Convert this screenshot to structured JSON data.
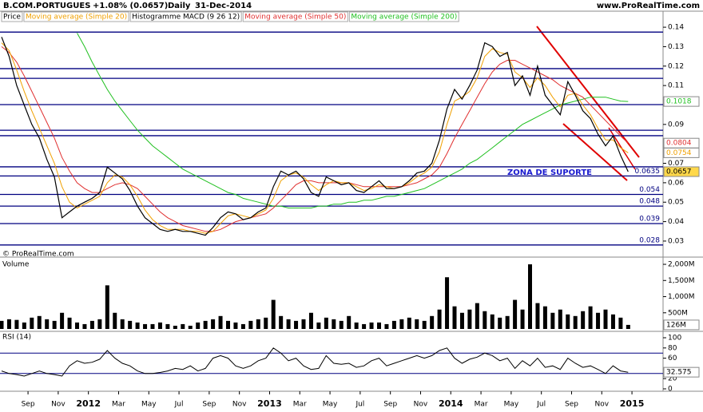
{
  "header": {
    "symbol": "B.COM.PORTUGUES",
    "change": "+1.08% (0.0657)",
    "period": "Daily",
    "date": "31-Dec-2014",
    "site": "www.ProRealTime.com",
    "copyright": "© ProRealTime.com"
  },
  "chart_data": [
    {
      "type": "line",
      "title": "Price",
      "indicator": "Histogramme MACD (9 26 12)",
      "annotation": "ZONA DE SUPORTE",
      "ylim": [
        0.0234,
        0.1425
      ],
      "yticks": [
        0.14,
        0.13,
        0.12,
        0.11,
        0.09,
        0.07,
        0.06,
        0.05,
        0.04,
        0.03
      ],
      "levels": [
        0.1375,
        0.1187,
        0.1137,
        0.1002,
        0.087,
        0.0842,
        0.0682
      ],
      "labeled_levels": [
        0.0635,
        0.054,
        0.048,
        0.039,
        0.028
      ],
      "level_color": "#000080",
      "x_labels": [
        "Sep",
        "Nov",
        "2012",
        "Mar",
        "May",
        "Jul",
        "Sep",
        "Nov",
        "2013",
        "Mar",
        "May",
        "Jul",
        "Sep",
        "Nov",
        "2014",
        "Mar",
        "May",
        "Jul",
        "Sep",
        "Nov",
        "2015"
      ],
      "series": [
        {
          "name": "Price",
          "color": "#000000",
          "last_value": 0.0657,
          "values": [
            0.135,
            0.125,
            0.11,
            0.1,
            0.09,
            0.083,
            0.072,
            0.063,
            0.042,
            0.045,
            0.048,
            0.05,
            0.052,
            0.055,
            0.068,
            0.065,
            0.062,
            0.056,
            0.048,
            0.042,
            0.039,
            0.036,
            0.035,
            0.036,
            0.035,
            0.035,
            0.034,
            0.033,
            0.037,
            0.042,
            0.045,
            0.044,
            0.041,
            0.042,
            0.045,
            0.047,
            0.058,
            0.066,
            0.064,
            0.066,
            0.062,
            0.055,
            0.053,
            0.063,
            0.061,
            0.059,
            0.06,
            0.056,
            0.055,
            0.058,
            0.061,
            0.057,
            0.057,
            0.058,
            0.061,
            0.065,
            0.066,
            0.07,
            0.082,
            0.098,
            0.108,
            0.103,
            0.11,
            0.118,
            0.132,
            0.13,
            0.125,
            0.127,
            0.11,
            0.115,
            0.105,
            0.12,
            0.105,
            0.1,
            0.095,
            0.112,
            0.105,
            0.097,
            0.093,
            0.085,
            0.079,
            0.084,
            0.074,
            0.0657
          ]
        },
        {
          "name": "Moving average (Simple 20)",
          "color": "#f0a000",
          "last_value": 0.0754,
          "values": [
            0.132,
            0.128,
            0.118,
            0.107,
            0.097,
            0.088,
            0.079,
            0.07,
            0.058,
            0.05,
            0.047,
            0.049,
            0.051,
            0.053,
            0.06,
            0.064,
            0.063,
            0.059,
            0.053,
            0.046,
            0.041,
            0.038,
            0.036,
            0.036,
            0.036,
            0.035,
            0.035,
            0.034,
            0.035,
            0.039,
            0.043,
            0.044,
            0.043,
            0.042,
            0.044,
            0.046,
            0.052,
            0.061,
            0.064,
            0.065,
            0.063,
            0.059,
            0.056,
            0.059,
            0.061,
            0.06,
            0.06,
            0.058,
            0.056,
            0.057,
            0.059,
            0.058,
            0.057,
            0.058,
            0.06,
            0.063,
            0.065,
            0.068,
            0.076,
            0.09,
            0.102,
            0.104,
            0.107,
            0.114,
            0.125,
            0.129,
            0.127,
            0.126,
            0.117,
            0.114,
            0.109,
            0.114,
            0.11,
            0.104,
            0.099,
            0.105,
            0.106,
            0.1,
            0.095,
            0.088,
            0.082,
            0.082,
            0.078,
            0.0754
          ]
        },
        {
          "name": "Moving average (Simple 50)",
          "color": "#e03030",
          "last_value": 0.0804,
          "values": [
            0.13,
            0.127,
            0.122,
            0.115,
            0.107,
            0.099,
            0.091,
            0.083,
            0.073,
            0.066,
            0.06,
            0.057,
            0.055,
            0.055,
            0.057,
            0.059,
            0.06,
            0.059,
            0.057,
            0.053,
            0.049,
            0.045,
            0.042,
            0.04,
            0.038,
            0.037,
            0.036,
            0.035,
            0.035,
            0.036,
            0.038,
            0.04,
            0.041,
            0.042,
            0.043,
            0.044,
            0.047,
            0.051,
            0.055,
            0.059,
            0.061,
            0.061,
            0.06,
            0.06,
            0.06,
            0.06,
            0.06,
            0.059,
            0.058,
            0.058,
            0.058,
            0.058,
            0.058,
            0.058,
            0.059,
            0.06,
            0.062,
            0.064,
            0.068,
            0.075,
            0.083,
            0.09,
            0.097,
            0.104,
            0.111,
            0.117,
            0.121,
            0.123,
            0.123,
            0.121,
            0.119,
            0.117,
            0.115,
            0.113,
            0.11,
            0.108,
            0.106,
            0.104,
            0.1,
            0.096,
            0.092,
            0.088,
            0.084,
            0.0804
          ]
        },
        {
          "name": "Moving average (Simple 200)",
          "color": "#20c020",
          "last_value": 0.1018,
          "values": [
            null,
            null,
            null,
            null,
            null,
            null,
            null,
            null,
            null,
            null,
            0.137,
            0.13,
            0.122,
            0.115,
            0.108,
            0.102,
            0.097,
            0.092,
            0.087,
            0.083,
            0.079,
            0.076,
            0.073,
            0.07,
            0.067,
            0.065,
            0.063,
            0.061,
            0.059,
            0.057,
            0.055,
            0.054,
            0.052,
            0.051,
            0.05,
            0.049,
            0.048,
            0.048,
            0.047,
            0.047,
            0.047,
            0.047,
            0.048,
            0.048,
            0.049,
            0.049,
            0.05,
            0.05,
            0.051,
            0.051,
            0.052,
            0.053,
            0.053,
            0.054,
            0.055,
            0.056,
            0.057,
            0.059,
            0.061,
            0.063,
            0.065,
            0.067,
            0.07,
            0.072,
            0.075,
            0.078,
            0.081,
            0.084,
            0.087,
            0.09,
            0.092,
            0.094,
            0.096,
            0.098,
            0.1,
            0.101,
            0.102,
            0.103,
            0.104,
            0.104,
            0.104,
            0.103,
            0.102,
            0.1018
          ]
        }
      ]
    },
    {
      "type": "bar",
      "title": "Volume",
      "color": "#000000",
      "ylim": [
        0,
        2100
      ],
      "yticks": [
        {
          "value": 2000,
          "label": "2,000M"
        },
        {
          "value": 1500,
          "label": "1,500M"
        },
        {
          "value": 1000,
          "label": "1,000M"
        },
        {
          "value": 500,
          "label": "500M"
        }
      ],
      "last_value": {
        "value": 126,
        "label": "126M"
      },
      "values": [
        250,
        300,
        280,
        200,
        350,
        400,
        300,
        250,
        500,
        350,
        200,
        150,
        250,
        300,
        1350,
        500,
        300,
        250,
        200,
        150,
        150,
        200,
        150,
        100,
        150,
        100,
        200,
        250,
        300,
        400,
        250,
        200,
        150,
        250,
        300,
        350,
        900,
        400,
        300,
        250,
        300,
        500,
        200,
        350,
        300,
        250,
        400,
        200,
        150,
        200,
        200,
        150,
        250,
        300,
        350,
        300,
        250,
        400,
        600,
        1600,
        700,
        500,
        600,
        800,
        550,
        450,
        350,
        400,
        900,
        600,
        2000,
        800,
        700,
        500,
        600,
        450,
        400,
        550,
        700,
        500,
        600,
        450,
        350,
        126
      ]
    },
    {
      "type": "line",
      "title": "RSI (14)",
      "color": "#000000",
      "ylim": [
        0,
        100
      ],
      "yticks": [
        100,
        80,
        60,
        20,
        0
      ],
      "ref_lines": [
        70,
        30
      ],
      "last_value": 32.575,
      "values": [
        35,
        30,
        28,
        25,
        30,
        35,
        30,
        28,
        25,
        45,
        55,
        50,
        52,
        58,
        75,
        60,
        50,
        45,
        35,
        30,
        30,
        32,
        35,
        40,
        38,
        45,
        35,
        40,
        60,
        65,
        60,
        45,
        40,
        45,
        55,
        60,
        80,
        70,
        55,
        60,
        45,
        38,
        40,
        65,
        50,
        48,
        50,
        42,
        45,
        55,
        60,
        45,
        50,
        55,
        60,
        65,
        60,
        65,
        75,
        80,
        60,
        50,
        58,
        62,
        70,
        65,
        55,
        60,
        40,
        55,
        45,
        60,
        42,
        45,
        38,
        60,
        50,
        42,
        45,
        38,
        30,
        45,
        35,
        32.575
      ]
    }
  ]
}
